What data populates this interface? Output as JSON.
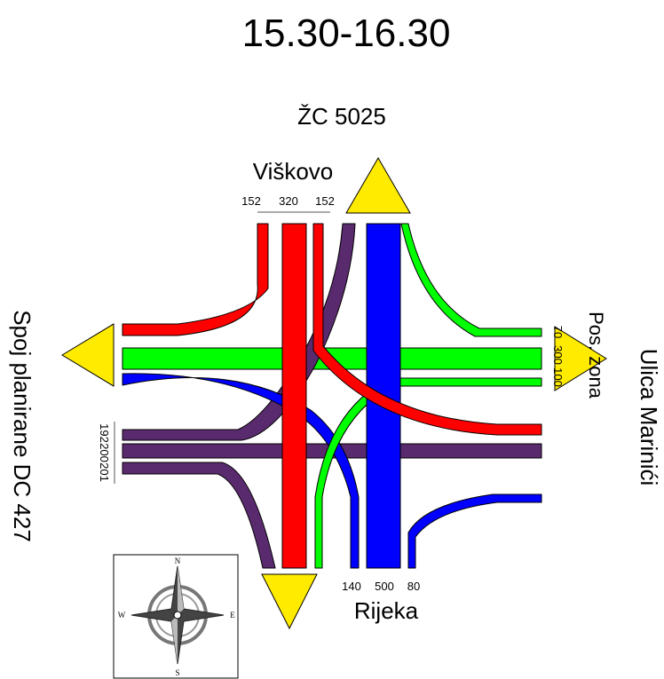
{
  "title": "15.30-16.30",
  "north": {
    "road": "ŽC 5025",
    "place": "Viškovo",
    "counts": [
      152,
      320,
      152
    ]
  },
  "west": {
    "road": "Spoj planirane DC 427",
    "counts": [
      192,
      200,
      201
    ]
  },
  "east": {
    "road": "Ulica Marinići",
    "place": "Pos. zona",
    "counts": [
      70,
      300,
      100
    ]
  },
  "south": {
    "place": "Rijeka",
    "counts": [
      140,
      500,
      80
    ]
  },
  "compass": {
    "n": "N",
    "e": "E",
    "s": "S",
    "w": "W"
  }
}
